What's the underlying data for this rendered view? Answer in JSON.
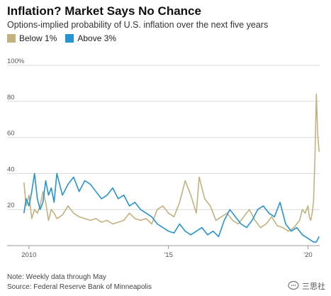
{
  "title": "Inflation? Market Says No Chance",
  "subtitle": "Options-implied probability of U.S. inflation over the next five years",
  "note": "Note: Weekly data through May",
  "source": "Source: Federal Reserve Bank of Minneapolis",
  "watermark": {
    "text": "三思社",
    "icon": "chat-bubble-icon"
  },
  "colors": {
    "below": "#c2b280",
    "above": "#2694d0",
    "grid": "#d9d9d9"
  },
  "chart_data": {
    "type": "line",
    "title": "Inflation? Market Says No Chance",
    "subtitle": "Options-implied probability of U.S. inflation over the next five years",
    "ylim": [
      0,
      100
    ],
    "yticks": [
      0,
      20,
      40,
      60,
      80,
      100
    ],
    "ytick_labels": [
      "0",
      "20",
      "40",
      "60",
      "80",
      "100%"
    ],
    "xlim": [
      2009.8,
      2020.42
    ],
    "xticks": [
      2010,
      2015,
      2020
    ],
    "xtick_labels": [
      "2010",
      "'15",
      "'20"
    ],
    "grid": true,
    "legend_position": "top-left",
    "series": [
      {
        "name": "Below 1%",
        "color": "#c2b280",
        "x": [
          2009.82,
          2009.9,
          2010.0,
          2010.1,
          2010.2,
          2010.3,
          2010.4,
          2010.5,
          2010.6,
          2010.7,
          2010.8,
          2010.9,
          2011.0,
          2011.2,
          2011.4,
          2011.6,
          2011.8,
          2012.0,
          2012.2,
          2012.4,
          2012.6,
          2012.8,
          2013.0,
          2013.2,
          2013.4,
          2013.6,
          2013.8,
          2014.0,
          2014.2,
          2014.4,
          2014.6,
          2014.8,
          2015.0,
          2015.2,
          2015.4,
          2015.6,
          2015.8,
          2016.0,
          2016.1,
          2016.3,
          2016.5,
          2016.7,
          2016.9,
          2017.1,
          2017.3,
          2017.5,
          2017.7,
          2017.9,
          2018.1,
          2018.3,
          2018.5,
          2018.7,
          2018.9,
          2019.1,
          2019.3,
          2019.5,
          2019.7,
          2019.8,
          2019.9,
          2020.0,
          2020.05,
          2020.1,
          2020.15,
          2020.2,
          2020.25,
          2020.3,
          2020.35,
          2020.4
        ],
        "values": [
          35,
          22,
          28,
          15,
          20,
          18,
          22,
          30,
          24,
          14,
          20,
          18,
          15,
          17,
          22,
          18,
          16,
          15,
          14,
          15,
          13,
          14,
          12,
          13,
          14,
          18,
          15,
          14,
          15,
          12,
          20,
          22,
          18,
          16,
          24,
          36,
          28,
          18,
          38,
          26,
          22,
          14,
          16,
          18,
          14,
          12,
          16,
          20,
          14,
          10,
          12,
          16,
          11,
          10,
          8,
          10,
          14,
          20,
          18,
          22,
          16,
          14,
          18,
          24,
          48,
          84,
          62,
          52
        ]
      },
      {
        "name": "Above 3%",
        "color": "#2694d0",
        "x": [
          2009.82,
          2009.9,
          2010.0,
          2010.1,
          2010.2,
          2010.3,
          2010.4,
          2010.5,
          2010.6,
          2010.7,
          2010.8,
          2010.9,
          2011.0,
          2011.2,
          2011.4,
          2011.6,
          2011.8,
          2012.0,
          2012.2,
          2012.4,
          2012.6,
          2012.8,
          2013.0,
          2013.2,
          2013.4,
          2013.6,
          2013.8,
          2014.0,
          2014.2,
          2014.4,
          2014.6,
          2014.8,
          2015.0,
          2015.2,
          2015.4,
          2015.6,
          2015.8,
          2016.0,
          2016.2,
          2016.4,
          2016.6,
          2016.8,
          2017.0,
          2017.2,
          2017.4,
          2017.6,
          2017.8,
          2018.0,
          2018.2,
          2018.4,
          2018.6,
          2018.8,
          2019.0,
          2019.2,
          2019.4,
          2019.6,
          2019.8,
          2020.0,
          2020.1,
          2020.2,
          2020.3,
          2020.4
        ],
        "values": [
          18,
          26,
          22,
          30,
          40,
          26,
          20,
          24,
          36,
          28,
          32,
          24,
          40,
          28,
          34,
          38,
          30,
          36,
          34,
          30,
          26,
          28,
          32,
          26,
          28,
          22,
          24,
          20,
          18,
          16,
          12,
          10,
          8,
          7,
          12,
          8,
          6,
          8,
          10,
          6,
          8,
          5,
          14,
          20,
          16,
          12,
          10,
          14,
          20,
          22,
          18,
          16,
          24,
          12,
          8,
          10,
          6,
          4,
          3,
          2,
          2,
          5
        ]
      }
    ]
  }
}
